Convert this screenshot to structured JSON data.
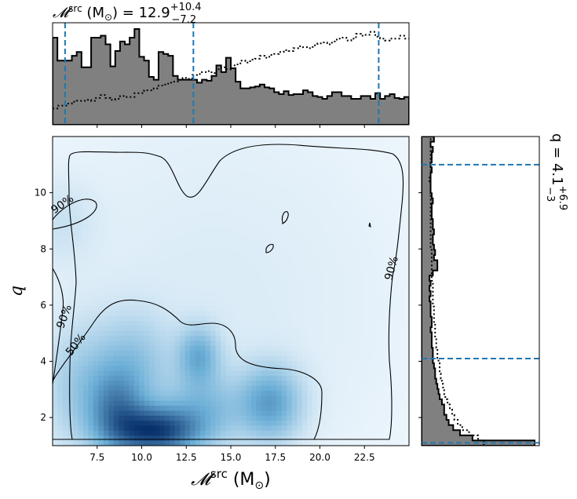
{
  "chart_data": {
    "type": "heatmap",
    "top_title": {
      "prefix": "𝓜",
      "sup": "src",
      "rest": " (M",
      "sun": "⊙",
      "close": ") = 12.9",
      "upper": "+10.4",
      "lower": "−7.2"
    },
    "right_title": {
      "prefix": "q = 4.1",
      "upper": "+6.9",
      "lower": "−3"
    },
    "xlabel": {
      "sym": "𝓜",
      "sup": "src",
      "rest": " (M",
      "sun": "⊙",
      "close": ")"
    },
    "ylabel": "q",
    "xlim": [
      5.0,
      25.0
    ],
    "ylim": [
      1.0,
      12.0
    ],
    "xticks": [
      "7.5",
      "10.0",
      "12.5",
      "15.0",
      "17.5",
      "20.0",
      "22.5"
    ],
    "xtick_values": [
      7.5,
      10.0,
      12.5,
      15.0,
      17.5,
      20.0,
      22.5
    ],
    "yticks": [
      "2",
      "4",
      "6",
      "8",
      "10"
    ],
    "ytick_values": [
      2,
      4,
      6,
      8,
      10
    ],
    "mc_quantiles": [
      5.7,
      12.9,
      23.3
    ],
    "q_quantiles": [
      1.1,
      4.1,
      11.0
    ],
    "contour_labels": [
      "90%",
      "50%",
      "90%",
      "90%"
    ],
    "density_blobs": [
      {
        "mc": 10.8,
        "q": 1.5,
        "sigma_mc": 1.6,
        "sigma_q": 0.6,
        "w": 1.0
      },
      {
        "mc": 8.6,
        "q": 2.2,
        "sigma_mc": 1.1,
        "sigma_q": 1.0,
        "w": 0.55
      },
      {
        "mc": 13.2,
        "q": 4.2,
        "sigma_mc": 0.8,
        "sigma_q": 0.7,
        "w": 0.45
      },
      {
        "mc": 17.2,
        "q": 2.5,
        "sigma_mc": 1.2,
        "sigma_q": 0.9,
        "w": 0.55
      },
      {
        "mc": 13.5,
        "q": 2.3,
        "sigma_mc": 1.5,
        "sigma_q": 0.9,
        "w": 0.35
      },
      {
        "mc": 6.5,
        "q": 3.0,
        "sigma_mc": 1.4,
        "sigma_q": 1.5,
        "w": 0.25
      },
      {
        "mc": 9.5,
        "q": 3.9,
        "sigma_mc": 1.5,
        "sigma_q": 1.2,
        "w": 0.3
      },
      {
        "mc": 14.0,
        "q": 6.0,
        "sigma_mc": 9.0,
        "sigma_q": 6.0,
        "w": 0.08
      },
      {
        "mc": 5.5,
        "q": 9.0,
        "sigma_mc": 1.3,
        "sigma_q": 1.0,
        "w": 0.1
      }
    ],
    "mc_hist_filled": [
      0.91,
      0.67,
      0.67,
      0.67,
      0.72,
      0.76,
      0.6,
      0.6,
      0.91,
      0.91,
      0.93,
      0.84,
      0.61,
      0.77,
      0.87,
      0.84,
      0.91,
      1.0,
      0.71,
      0.67,
      0.5,
      0.47,
      0.76,
      0.74,
      0.72,
      0.51,
      0.47,
      0.47,
      0.47,
      0.47,
      0.44,
      0.47,
      0.46,
      0.51,
      0.62,
      0.55,
      0.7,
      0.59,
      0.45,
      0.38,
      0.38,
      0.39,
      0.4,
      0.42,
      0.39,
      0.38,
      0.34,
      0.32,
      0.35,
      0.31,
      0.32,
      0.32,
      0.36,
      0.34,
      0.3,
      0.29,
      0.27,
      0.3,
      0.34,
      0.34,
      0.3,
      0.3,
      0.27,
      0.27,
      0.3,
      0.3,
      0.27,
      0.33,
      0.27,
      0.3,
      0.32,
      0.28,
      0.27,
      0.29
    ],
    "mc_hist_dotted": [
      0.17,
      0.2,
      0.2,
      0.22,
      0.24,
      0.25,
      0.25,
      0.26,
      0.25,
      0.28,
      0.31,
      0.28,
      0.26,
      0.27,
      0.3,
      0.29,
      0.29,
      0.33,
      0.33,
      0.36,
      0.36,
      0.38,
      0.41,
      0.42,
      0.44,
      0.45,
      0.47,
      0.49,
      0.48,
      0.52,
      0.53,
      0.55,
      0.56,
      0.54,
      0.58,
      0.6,
      0.58,
      0.62,
      0.63,
      0.67,
      0.65,
      0.68,
      0.69,
      0.72,
      0.7,
      0.73,
      0.74,
      0.76,
      0.78,
      0.77,
      0.8,
      0.82,
      0.81,
      0.8,
      0.83,
      0.85,
      0.86,
      0.84,
      0.87,
      0.9,
      0.91,
      0.88,
      0.9,
      0.95,
      0.93,
      0.94,
      0.97,
      0.92,
      0.9,
      0.88,
      0.9,
      0.9,
      0.93,
      0.9
    ],
    "q_hist_filled": [
      1.0,
      0.45,
      0.34,
      0.28,
      0.24,
      0.22,
      0.2,
      0.2,
      0.18,
      0.16,
      0.15,
      0.14,
      0.13,
      0.12,
      0.12,
      0.11,
      0.1,
      0.1,
      0.1,
      0.09,
      0.09,
      0.09,
      0.08,
      0.09,
      0.09,
      0.08,
      0.08,
      0.08,
      0.07,
      0.08,
      0.07,
      0.08,
      0.07,
      0.1,
      0.14,
      0.14,
      0.11,
      0.12,
      0.11,
      0.1,
      0.1,
      0.11,
      0.1,
      0.1,
      0.09,
      0.09,
      0.09,
      0.1,
      0.09,
      0.08,
      0.08,
      0.08,
      0.08,
      0.09,
      0.08,
      0.09,
      0.09,
      0.1,
      0.08,
      0.11
    ],
    "q_hist_dotted": [
      0.55,
      0.5,
      0.42,
      0.36,
      0.32,
      0.29,
      0.27,
      0.25,
      0.23,
      0.21,
      0.2,
      0.19,
      0.18,
      0.17,
      0.16,
      0.16,
      0.15,
      0.14,
      0.14,
      0.13,
      0.13,
      0.12,
      0.12,
      0.12,
      0.11,
      0.11,
      0.11,
      0.1,
      0.1,
      0.1,
      0.1,
      0.1,
      0.09,
      0.09,
      0.09,
      0.09,
      0.09,
      0.09,
      0.08,
      0.08,
      0.08,
      0.08,
      0.08,
      0.08,
      0.08,
      0.08,
      0.08,
      0.08,
      0.08,
      0.08,
      0.08,
      0.07,
      0.08,
      0.08,
      0.08,
      0.08,
      0.08,
      0.08,
      0.08,
      0.08
    ],
    "colors": {
      "fill": "#808080",
      "edge": "#000000",
      "quantile": "#1f77b4",
      "cmap_low": "#f7fbff",
      "cmap_high": "#08306b"
    }
  }
}
